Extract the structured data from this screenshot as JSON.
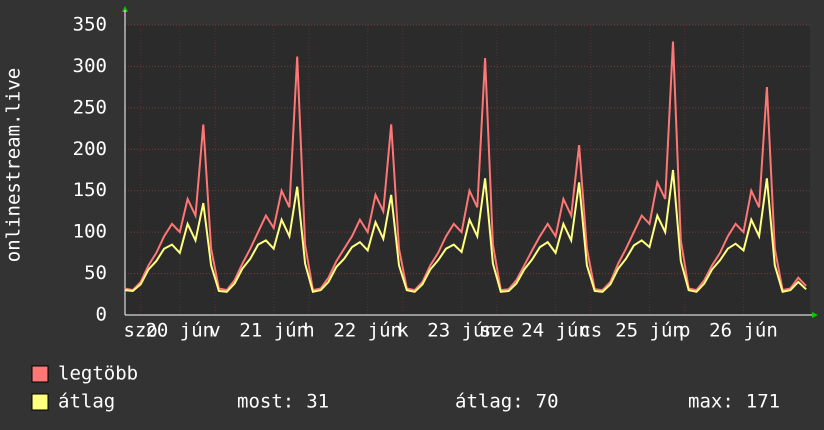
{
  "chart_data": {
    "type": "line",
    "y_label": "onlinestream.live",
    "x": [
      0,
      2,
      4,
      6,
      8,
      10,
      12,
      14,
      16,
      18,
      20,
      22,
      24,
      26,
      28,
      30,
      32,
      34,
      36,
      38,
      40,
      42,
      44,
      46,
      48,
      50,
      52,
      54,
      56,
      58,
      60,
      62,
      64,
      66,
      68,
      70,
      72,
      74,
      76,
      78,
      80,
      82,
      84,
      86,
      88,
      90,
      92,
      94,
      96,
      98,
      100,
      102,
      104,
      106,
      108,
      110,
      112,
      114,
      116,
      118,
      120,
      122,
      124,
      126,
      128,
      130,
      132,
      134,
      136,
      138,
      140,
      142,
      144,
      146,
      148,
      150,
      152,
      154,
      156,
      158,
      160,
      162,
      164,
      166,
      168,
      170,
      172,
      174
    ],
    "xlim": [
      0,
      175
    ],
    "xticks": [
      {
        "value": 4,
        "label": "szo"
      },
      {
        "value": 14,
        "label": "20 jún"
      },
      {
        "value": 23,
        "label": "v"
      },
      {
        "value": 38,
        "label": "21 jún"
      },
      {
        "value": 47,
        "label": "h"
      },
      {
        "value": 62,
        "label": "22 jún"
      },
      {
        "value": 71,
        "label": "k"
      },
      {
        "value": 86,
        "label": "23 jún"
      },
      {
        "value": 95,
        "label": "sze"
      },
      {
        "value": 110,
        "label": "24 jún"
      },
      {
        "value": 119,
        "label": "cs"
      },
      {
        "value": 134,
        "label": "25 jún"
      },
      {
        "value": 143,
        "label": "p"
      },
      {
        "value": 158,
        "label": "26 jún"
      }
    ],
    "ylim": [
      0,
      350
    ],
    "yticks": [
      0,
      50,
      100,
      150,
      200,
      250,
      300,
      350
    ],
    "grid": true,
    "series": [
      {
        "name": "legtöbb",
        "color": "#ff7676",
        "values": [
          32,
          30,
          40,
          60,
          75,
          95,
          110,
          100,
          140,
          120,
          230,
          80,
          32,
          30,
          42,
          62,
          80,
          100,
          120,
          105,
          150,
          130,
          312,
          85,
          30,
          32,
          45,
          65,
          80,
          95,
          115,
          100,
          145,
          125,
          230,
          80,
          32,
          30,
          40,
          60,
          75,
          95,
          110,
          100,
          150,
          130,
          310,
          85,
          30,
          31,
          42,
          60,
          78,
          95,
          110,
          95,
          140,
          120,
          205,
          80,
          31,
          30,
          40,
          62,
          80,
          100,
          120,
          110,
          160,
          140,
          330,
          90,
          32,
          30,
          42,
          60,
          75,
          95,
          110,
          100,
          150,
          130,
          275,
          80,
          30,
          32,
          45,
          35
        ]
      },
      {
        "name": "átlag",
        "color": "#ffff80",
        "values": [
          30,
          29,
          37,
          55,
          65,
          80,
          85,
          75,
          110,
          90,
          135,
          60,
          29,
          28,
          38,
          56,
          68,
          85,
          90,
          80,
          115,
          95,
          155,
          62,
          28,
          30,
          40,
          58,
          68,
          82,
          88,
          78,
          112,
          92,
          145,
          60,
          30,
          28,
          37,
          55,
          66,
          80,
          85,
          76,
          115,
          95,
          165,
          62,
          28,
          29,
          38,
          55,
          67,
          82,
          88,
          75,
          110,
          90,
          160,
          60,
          29,
          28,
          37,
          56,
          68,
          84,
          90,
          82,
          120,
          100,
          175,
          65,
          30,
          28,
          38,
          55,
          66,
          80,
          86,
          78,
          115,
          95,
          165,
          60,
          28,
          30,
          40,
          31
        ]
      }
    ],
    "stats": [
      {
        "label": "most:",
        "value": 31
      },
      {
        "label": "átlag:",
        "value": 70
      },
      {
        "label": "max:",
        "value": 171
      }
    ]
  }
}
